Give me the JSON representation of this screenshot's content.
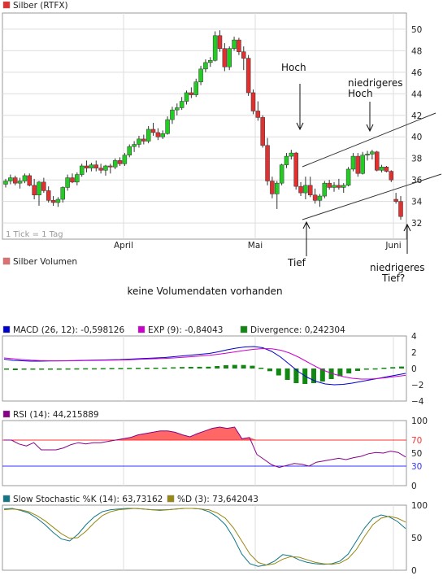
{
  "colors": {
    "up": "#22cc22",
    "down": "#e03030",
    "grid": "#dddddd",
    "macd": "#0000cc",
    "exp": "#cc00cc",
    "divergence": "#118811",
    "rsi_line": "#880088",
    "rsi_fill": "#ff6666",
    "rsi_70": "#ff3333",
    "rsi_30": "#3333ff",
    "stoch_k": "#117788",
    "stoch_d": "#998811",
    "frame": "#999999"
  },
  "price_panel": {
    "legend": "Silber (RTFX)",
    "tick_note": "1 Tick = 1 Tag",
    "x_labels": [
      "April",
      "Mai",
      "Juni"
    ],
    "annotations": {
      "hoch": "Hoch",
      "niedrigeres_hoch_1": "niedrigeres",
      "niedrigeres_hoch_2": "Hoch",
      "tief": "Tief",
      "niedrigeres_tief_1": "niedrigeres",
      "niedrigeres_tief_2": "Tief?"
    }
  },
  "volume_panel": {
    "legend": "Silber Volumen",
    "message": "keine Volumendaten vorhanden"
  },
  "macd_panel": {
    "legend_macd": "MACD (26, 12): -0,598126",
    "legend_exp": "EXP (9): -0,84043",
    "legend_div": "Divergence: 0,242304"
  },
  "rsi_panel": {
    "legend": "RSI (14): 44,215889"
  },
  "stoch_panel": {
    "legend_k": "Slow Stochastic %K (14): 63,73162",
    "legend_d": "%D (3): 73,642043"
  },
  "chart_data": [
    {
      "type": "candlestick",
      "title": "Silber (RTFX)",
      "ylim": [
        30.5,
        51.5
      ],
      "yticks": [
        32,
        34,
        36,
        38,
        40,
        42,
        44,
        46,
        48,
        50
      ],
      "x_labels": [
        "April",
        "Mai",
        "Juni"
      ],
      "candles": [
        [
          35.6,
          36.1,
          35.3,
          35.9
        ],
        [
          35.9,
          36.5,
          35.6,
          36.2
        ],
        [
          36.2,
          36.4,
          35.5,
          35.7
        ],
        [
          35.7,
          36.2,
          35.2,
          35.9
        ],
        [
          35.9,
          36.6,
          35.7,
          36.4
        ],
        [
          36.4,
          36.6,
          35.4,
          35.5
        ],
        [
          35.5,
          36.1,
          34.2,
          34.6
        ],
        [
          34.6,
          35.9,
          33.6,
          35.8
        ],
        [
          35.8,
          36.2,
          34.8,
          35.0
        ],
        [
          35.0,
          35.4,
          33.9,
          34.1
        ],
        [
          34.1,
          34.5,
          33.6,
          33.9
        ],
        [
          33.9,
          34.4,
          33.5,
          34.2
        ],
        [
          34.2,
          35.4,
          33.9,
          35.3
        ],
        [
          35.3,
          36.5,
          35.0,
          36.2
        ],
        [
          36.2,
          36.6,
          35.7,
          35.8
        ],
        [
          35.8,
          36.7,
          35.5,
          36.5
        ],
        [
          36.5,
          37.5,
          36.3,
          37.3
        ],
        [
          37.3,
          37.8,
          36.7,
          37.1
        ],
        [
          37.1,
          37.6,
          36.8,
          37.4
        ],
        [
          37.4,
          37.8,
          36.8,
          37.1
        ],
        [
          37.1,
          37.5,
          36.6,
          36.9
        ],
        [
          36.9,
          37.4,
          36.4,
          37.3
        ],
        [
          37.3,
          37.5,
          36.6,
          37.2
        ],
        [
          37.2,
          38.0,
          37.0,
          37.8
        ],
        [
          37.8,
          38.1,
          37.3,
          37.5
        ],
        [
          37.5,
          38.5,
          37.3,
          38.3
        ],
        [
          38.3,
          39.3,
          38.1,
          39.1
        ],
        [
          39.1,
          39.6,
          38.6,
          39.3
        ],
        [
          39.3,
          40.1,
          39.0,
          39.8
        ],
        [
          39.8,
          40.2,
          39.3,
          39.6
        ],
        [
          39.6,
          41.0,
          39.4,
          40.7
        ],
        [
          40.7,
          41.3,
          40.1,
          40.4
        ],
        [
          40.4,
          40.8,
          39.7,
          40.0
        ],
        [
          40.0,
          40.6,
          39.8,
          40.3
        ],
        [
          40.3,
          41.9,
          40.2,
          41.6
        ],
        [
          41.6,
          42.8,
          41.2,
          42.5
        ],
        [
          42.5,
          43.1,
          42.0,
          42.7
        ],
        [
          42.7,
          43.7,
          42.5,
          43.3
        ],
        [
          43.3,
          44.3,
          43.0,
          44.1
        ],
        [
          44.1,
          44.6,
          43.6,
          43.9
        ],
        [
          43.9,
          45.4,
          43.7,
          45.1
        ],
        [
          45.1,
          46.6,
          44.8,
          46.3
        ],
        [
          46.3,
          47.2,
          46.0,
          46.9
        ],
        [
          46.9,
          47.4,
          46.5,
          47.1
        ],
        [
          47.1,
          49.8,
          47.0,
          49.4
        ],
        [
          49.4,
          49.9,
          47.9,
          48.2
        ],
        [
          48.2,
          48.7,
          46.1,
          46.5
        ],
        [
          46.5,
          48.4,
          46.2,
          48.2
        ],
        [
          48.2,
          49.3,
          48.0,
          49.0
        ],
        [
          49.0,
          49.2,
          47.6,
          47.9
        ],
        [
          47.9,
          48.4,
          46.2,
          47.3
        ],
        [
          47.3,
          47.6,
          43.8,
          44.1
        ],
        [
          44.1,
          44.4,
          42.1,
          42.4
        ],
        [
          42.4,
          43.3,
          41.5,
          41.8
        ],
        [
          41.8,
          42.0,
          39.0,
          39.2
        ],
        [
          39.2,
          39.9,
          35.5,
          35.9
        ],
        [
          35.9,
          36.3,
          34.3,
          34.7
        ],
        [
          34.7,
          35.9,
          33.3,
          35.7
        ],
        [
          35.7,
          37.5,
          35.5,
          37.4
        ],
        [
          37.4,
          38.5,
          37.1,
          38.2
        ],
        [
          38.2,
          38.8,
          37.9,
          38.5
        ],
        [
          38.5,
          38.6,
          35.1,
          35.4
        ],
        [
          35.4,
          35.8,
          34.5,
          34.8
        ],
        [
          34.8,
          36.3,
          34.2,
          35.5
        ],
        [
          35.5,
          36.3,
          34.4,
          34.6
        ],
        [
          34.6,
          35.2,
          33.8,
          34.1
        ],
        [
          34.1,
          34.7,
          33.5,
          34.5
        ],
        [
          34.5,
          35.9,
          34.3,
          35.7
        ],
        [
          35.7,
          36.0,
          35.1,
          35.3
        ],
        [
          35.3,
          35.8,
          34.9,
          35.5
        ],
        [
          35.5,
          36.1,
          35.1,
          35.3
        ],
        [
          35.3,
          35.7,
          34.8,
          35.5
        ],
        [
          35.5,
          37.2,
          35.4,
          37.0
        ],
        [
          37.0,
          38.5,
          36.8,
          38.2
        ],
        [
          38.2,
          38.5,
          36.3,
          36.6
        ],
        [
          36.6,
          38.6,
          36.5,
          38.3
        ],
        [
          38.3,
          38.7,
          37.8,
          38.4
        ],
        [
          38.4,
          38.8,
          37.9,
          38.6
        ],
        [
          38.6,
          38.7,
          36.8,
          36.9
        ],
        [
          36.9,
          37.4,
          36.7,
          37.2
        ],
        [
          37.2,
          37.3,
          36.7,
          36.8
        ],
        [
          36.8,
          36.9,
          35.8,
          36.0
        ],
        [
          34.2,
          34.8,
          33.8,
          34.0
        ],
        [
          34.0,
          34.5,
          32.3,
          32.6
        ]
      ]
    },
    {
      "type": "line",
      "title": "MACD (26, 12)",
      "ylim": [
        -4,
        4
      ],
      "yticks": [
        -4,
        -2,
        0,
        2,
        4
      ],
      "series": [
        {
          "name": "MACD (26, 12)",
          "values": [
            1.15,
            1.0,
            0.95,
            0.9,
            0.9,
            0.92,
            0.94,
            0.95,
            0.97,
            1.0,
            1.02,
            1.05,
            1.08,
            1.1,
            1.15,
            1.2,
            1.25,
            1.3,
            1.35,
            1.45,
            1.55,
            1.65,
            1.75,
            1.85,
            2.05,
            2.3,
            2.5,
            2.65,
            2.7,
            2.55,
            2.1,
            1.4,
            0.5,
            -0.4,
            -1.1,
            -1.6,
            -1.9,
            -2.0,
            -1.95,
            -1.8,
            -1.6,
            -1.4,
            -1.2,
            -1.0,
            -0.8,
            -0.6
          ]
        },
        {
          "name": "EXP (9)",
          "values": [
            1.3,
            1.2,
            1.1,
            1.02,
            0.97,
            0.95,
            0.94,
            0.94,
            0.95,
            0.97,
            0.99,
            1.01,
            1.03,
            1.05,
            1.08,
            1.12,
            1.16,
            1.2,
            1.24,
            1.3,
            1.37,
            1.45,
            1.54,
            1.63,
            1.75,
            1.9,
            2.06,
            2.22,
            2.36,
            2.45,
            2.43,
            2.25,
            1.9,
            1.4,
            0.8,
            0.2,
            -0.3,
            -0.7,
            -1.0,
            -1.2,
            -1.3,
            -1.3,
            -1.22,
            -1.1,
            -0.97,
            -0.84
          ]
        }
      ],
      "bars": {
        "name": "Divergence",
        "values": [
          -0.15,
          -0.2,
          -0.15,
          -0.12,
          -0.07,
          -0.03,
          0.0,
          0.01,
          0.02,
          0.03,
          0.03,
          0.04,
          0.05,
          0.05,
          0.07,
          0.08,
          0.09,
          0.1,
          0.11,
          0.15,
          0.18,
          0.2,
          0.21,
          0.22,
          0.3,
          0.4,
          0.44,
          0.43,
          0.34,
          0.1,
          -0.33,
          -0.85,
          -1.4,
          -1.8,
          -1.9,
          -1.8,
          -1.6,
          -1.3,
          -0.95,
          -0.6,
          -0.3,
          -0.1,
          0.02,
          0.1,
          0.17,
          0.24
        ]
      }
    },
    {
      "type": "area",
      "title": "RSI (14)",
      "ylim": [
        0,
        100
      ],
      "yticks": [
        0,
        30,
        50,
        70,
        100
      ],
      "series": [
        {
          "name": "RSI (14)",
          "values": [
            70,
            70,
            64,
            61,
            66,
            55,
            55,
            55,
            58,
            63,
            66,
            64,
            66,
            66,
            68,
            70,
            72,
            74,
            78,
            80,
            82,
            84,
            84,
            82,
            78,
            75,
            80,
            84,
            88,
            90,
            88,
            90,
            72,
            74,
            48,
            40,
            32,
            28,
            31,
            34,
            33,
            30,
            36,
            38,
            40,
            42,
            40,
            43,
            45,
            49,
            51,
            50,
            53,
            51,
            44
          ]
        }
      ]
    },
    {
      "type": "line",
      "title": "Slow Stochastic",
      "ylim": [
        0,
        100
      ],
      "yticks": [
        0,
        50,
        100
      ],
      "series": [
        {
          "name": "Slow Stochastic %K (14)",
          "values": [
            94,
            95,
            92,
            88,
            80,
            70,
            58,
            48,
            45,
            55,
            70,
            82,
            90,
            93,
            94,
            95,
            95,
            94,
            93,
            92,
            93,
            94,
            95,
            95,
            94,
            90,
            82,
            70,
            50,
            25,
            10,
            6,
            8,
            14,
            24,
            22,
            16,
            12,
            10,
            9,
            10,
            14,
            25,
            45,
            65,
            80,
            85,
            82,
            75,
            64
          ]
        },
        {
          "name": "%D (3)",
          "values": [
            93,
            94,
            93,
            90,
            84,
            76,
            66,
            56,
            49,
            50,
            60,
            73,
            84,
            90,
            93,
            94,
            95,
            94,
            93,
            93,
            93,
            94,
            95,
            95,
            94,
            93,
            88,
            80,
            65,
            45,
            25,
            12,
            8,
            10,
            17,
            21,
            20,
            16,
            12,
            10,
            9,
            11,
            18,
            32,
            52,
            70,
            80,
            83,
            80,
            74
          ]
        }
      ]
    }
  ]
}
